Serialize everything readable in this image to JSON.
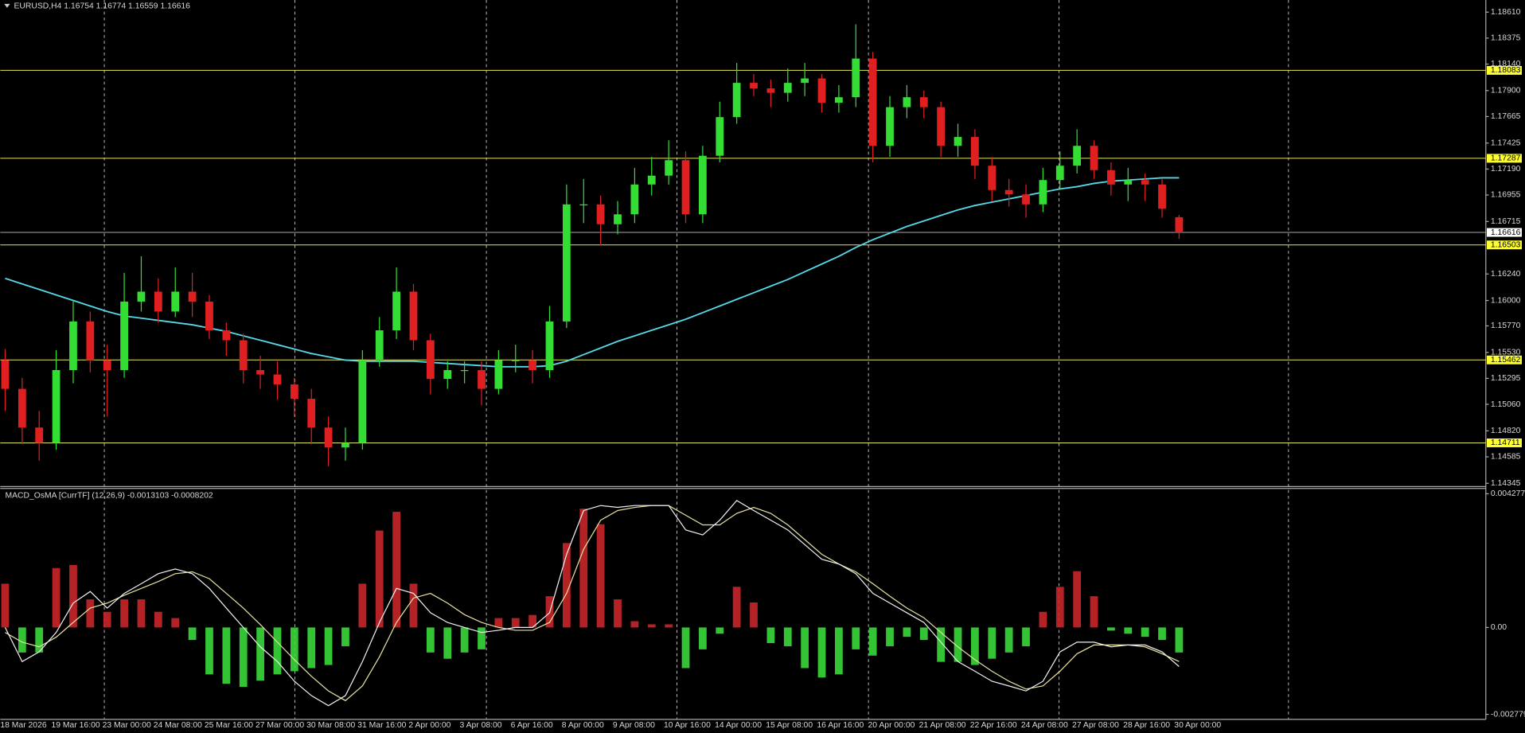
{
  "chart_data": [
    {
      "type": "candlestick",
      "title": "EURUSD,H4  1.16754 1.16774 1.16559 1.16616",
      "up_color": "#33dd33",
      "down_color": "#e02020",
      "open": [
        1.1546,
        1.152,
        1.1485,
        1.1471,
        1.1537,
        1.1581,
        1.1546,
        1.1537,
        1.1599,
        1.1608,
        1.159,
        1.1608,
        1.1599,
        1.1573,
        1.1564,
        1.1537,
        1.1533,
        1.1524,
        1.1511,
        1.1485,
        1.1467,
        1.1471,
        1.1546,
        1.1573,
        1.1608,
        1.1564,
        1.1529,
        1.1537,
        1.1537,
        1.152,
        1.1546,
        1.1546,
        1.1537,
        1.1581,
        1.1687,
        1.1687,
        1.1669,
        1.1678,
        1.1705,
        1.1713,
        1.1727,
        1.1678,
        1.1731,
        1.1766,
        1.1797,
        1.1792,
        1.1788,
        1.1797,
        1.1801,
        1.1779,
        1.1784,
        1.1819,
        1.174,
        1.1775,
        1.1784,
        1.1775,
        1.174,
        1.1748,
        1.1722,
        1.17,
        1.1696,
        1.1687,
        1.1709,
        1.1722,
        1.174,
        1.1718,
        1.1705,
        1.1709,
        1.1705,
        1.16754
      ],
      "high": [
        1.1556,
        1.153,
        1.15,
        1.1555,
        1.16,
        1.159,
        1.156,
        1.1625,
        1.164,
        1.162,
        1.163,
        1.1625,
        1.1605,
        1.158,
        1.157,
        1.155,
        1.1545,
        1.153,
        1.152,
        1.1495,
        1.1485,
        1.1555,
        1.1585,
        1.163,
        1.1615,
        1.157,
        1.1545,
        1.1545,
        1.1545,
        1.1555,
        1.156,
        1.1555,
        1.1595,
        1.1705,
        1.171,
        1.1695,
        1.169,
        1.172,
        1.173,
        1.1745,
        1.1735,
        1.174,
        1.178,
        1.1815,
        1.1805,
        1.18,
        1.181,
        1.1815,
        1.1805,
        1.1795,
        1.185,
        1.1825,
        1.1785,
        1.1795,
        1.179,
        1.178,
        1.176,
        1.1755,
        1.173,
        1.171,
        1.1705,
        1.172,
        1.1735,
        1.1755,
        1.1745,
        1.1725,
        1.172,
        1.1715,
        1.171,
        1.16774
      ],
      "low": [
        1.15,
        1.147,
        1.1455,
        1.1465,
        1.1525,
        1.1535,
        1.1495,
        1.153,
        1.159,
        1.158,
        1.1585,
        1.1585,
        1.1565,
        1.155,
        1.1525,
        1.152,
        1.151,
        1.1495,
        1.147,
        1.145,
        1.1455,
        1.1465,
        1.154,
        1.1565,
        1.1555,
        1.1515,
        1.152,
        1.1525,
        1.1505,
        1.1515,
        1.1535,
        1.1525,
        1.153,
        1.1575,
        1.167,
        1.165,
        1.166,
        1.167,
        1.1695,
        1.1705,
        1.167,
        1.167,
        1.1725,
        1.176,
        1.1785,
        1.1775,
        1.178,
        1.1785,
        1.177,
        1.177,
        1.1775,
        1.1725,
        1.173,
        1.1765,
        1.1765,
        1.173,
        1.173,
        1.171,
        1.169,
        1.1685,
        1.1675,
        1.168,
        1.17,
        1.1715,
        1.171,
        1.1695,
        1.169,
        1.169,
        1.1675,
        1.16559
      ],
      "close": [
        1.152,
        1.1485,
        1.1471,
        1.1537,
        1.1581,
        1.1546,
        1.1537,
        1.1599,
        1.1608,
        1.159,
        1.1608,
        1.1599,
        1.1573,
        1.1564,
        1.1537,
        1.1533,
        1.1524,
        1.1511,
        1.1485,
        1.1467,
        1.1471,
        1.1546,
        1.1573,
        1.1608,
        1.1564,
        1.1529,
        1.1537,
        1.1537,
        1.152,
        1.1546,
        1.1546,
        1.1537,
        1.1581,
        1.1687,
        1.1687,
        1.1669,
        1.1678,
        1.1705,
        1.1713,
        1.1727,
        1.1678,
        1.1731,
        1.1766,
        1.1797,
        1.1792,
        1.1788,
        1.1797,
        1.1801,
        1.1779,
        1.1784,
        1.1819,
        1.174,
        1.1775,
        1.1784,
        1.1775,
        1.174,
        1.1748,
        1.1722,
        1.17,
        1.1696,
        1.1687,
        1.1709,
        1.1722,
        1.174,
        1.1718,
        1.1705,
        1.1709,
        1.1705,
        1.1683,
        1.16616
      ],
      "ma": {
        "color": "#55d8e8",
        "values": [
          1.162,
          1.1615,
          1.161,
          1.1605,
          1.16,
          1.1595,
          1.159,
          1.1586,
          1.1584,
          1.1582,
          1.158,
          1.1578,
          1.1575,
          1.1572,
          1.1568,
          1.1564,
          1.156,
          1.1556,
          1.1552,
          1.1549,
          1.1546,
          1.1545,
          1.1545,
          1.1545,
          1.1545,
          1.1544,
          1.1543,
          1.1542,
          1.1541,
          1.154,
          1.154,
          1.154,
          1.1541,
          1.1545,
          1.1551,
          1.1557,
          1.1563,
          1.1568,
          1.1573,
          1.1578,
          1.1583,
          1.1589,
          1.1595,
          1.1601,
          1.1607,
          1.1613,
          1.1619,
          1.1626,
          1.1633,
          1.164,
          1.1648,
          1.1655,
          1.1661,
          1.1667,
          1.1672,
          1.1677,
          1.1682,
          1.1686,
          1.1689,
          1.1692,
          1.1695,
          1.1698,
          1.1701,
          1.1703,
          1.1706,
          1.1708,
          1.1709,
          1.171,
          1.1711,
          1.1711
        ]
      },
      "levels": [
        1.18083,
        1.17287,
        1.16503,
        1.15462,
        1.14711
      ],
      "level_color": "#e6e65a",
      "price": 1.16616,
      "ylim": [
        1.1432,
        1.1872
      ],
      "yticks": [
        {
          "value": 1.1861,
          "label": "1.18610"
        },
        1.18375,
        {
          "value": 1.1814,
          "label": "1.18140"
        },
        {
          "value": 1.179,
          "label": "1.17900"
        },
        1.17665,
        1.17425,
        {
          "value": 1.1719,
          "label": "1.17190"
        },
        1.16955,
        1.16715,
        {
          "value": 1.1624,
          "label": "1.16240"
        },
        {
          "value": 1.16,
          "label": "1.16000"
        },
        {
          "value": 1.1577,
          "label": "1.15770"
        },
        {
          "value": 1.1553,
          "label": "1.15530"
        },
        1.15295,
        {
          "value": 1.1506,
          "label": "1.15060"
        },
        {
          "value": 1.1482,
          "label": "1.14820"
        },
        1.14585,
        1.14345
      ]
    },
    {
      "type": "bar",
      "title": "MACD_OsMA [CurrTF] (12,26,9) -0.0013103 -0.0008202",
      "categories": [
        "18 Mar 2026",
        null,
        null,
        "19 Mar 16:00",
        null,
        null,
        "23 Mar 00:00",
        null,
        null,
        "24 Mar 08:00",
        null,
        null,
        "25 Mar 16:00",
        null,
        null,
        "27 Mar 00:00",
        null,
        null,
        "30 Mar 08:00",
        null,
        null,
        "31 Mar 16:00",
        null,
        null,
        "2 Apr 00:00",
        null,
        null,
        "3 Apr 08:00",
        null,
        null,
        "6 Apr 16:00",
        null,
        null,
        "8 Apr 00:00",
        null,
        null,
        "9 Apr 08:00",
        null,
        null,
        "10 Apr 16:00",
        null,
        null,
        "14 Apr 00:00",
        null,
        null,
        "15 Apr 08:00",
        null,
        null,
        "16 Apr 16:00",
        null,
        null,
        "20 Apr 00:00",
        null,
        null,
        "21 Apr 08:00",
        null,
        null,
        "22 Apr 16:00",
        null,
        null,
        "24 Apr 08:00",
        null,
        null,
        "27 Apr 08:00",
        null,
        null,
        "28 Apr 16:00",
        null,
        null,
        "30 Apr 00:00"
      ],
      "values": [
        0.0014,
        -0.0008,
        -0.0008,
        0.0019,
        0.002,
        0.0009,
        0.0005,
        0.0009,
        0.0009,
        0.0005,
        0.0003,
        -0.0004,
        -0.0015,
        -0.0018,
        -0.0019,
        -0.0017,
        -0.0015,
        -0.0014,
        -0.0013,
        -0.0012,
        -0.0006,
        0.0014,
        0.0031,
        0.0037,
        0.0014,
        -0.0008,
        -0.001,
        -0.0008,
        -0.0007,
        0.0003,
        0.0003,
        0.0004,
        0.001,
        0.0027,
        0.0038,
        0.0033,
        0.0009,
        0.0002,
        0.0001,
        0.0001,
        -0.0013,
        -0.0007,
        -0.0002,
        0.0013,
        0.0008,
        -0.0005,
        -0.0006,
        -0.0013,
        -0.0016,
        -0.0015,
        -0.0007,
        -0.0009,
        -0.0006,
        -0.0003,
        -0.0004,
        -0.0011,
        -0.0011,
        -0.0012,
        -0.001,
        -0.0008,
        -0.0006,
        0.0005,
        0.0013,
        0.0018,
        0.001,
        -0.0001,
        -0.0002,
        -0.0003,
        -0.0004,
        -0.0008
      ],
      "up_color": "#c8262a",
      "down_color": "#3ad83a",
      "macd": {
        "color": "#f0f0f0",
        "values": [
          0,
          -0.00109,
          -0.00078,
          -0.00016,
          0.00078,
          0.00115,
          0.00062,
          0.00109,
          0.0014,
          0.00172,
          0.00187,
          0.00172,
          0.00125,
          0.00062,
          0,
          -0.00062,
          -0.00109,
          -0.00172,
          -0.00218,
          -0.0025,
          -0.00218,
          -0.00109,
          0.00016,
          0.00125,
          0.00109,
          0.00047,
          0.00016,
          0,
          -0.00016,
          -9e-05,
          0,
          0,
          0.00047,
          0.00234,
          0.00374,
          0.0039,
          0.00384,
          0.0039,
          0.0039,
          0.0039,
          0.00312,
          0.00296,
          0.00343,
          0.00406,
          0.00374,
          0.00343,
          0.00312,
          0.00265,
          0.00218,
          0.00203,
          0.00172,
          0.00109,
          0.00078,
          0.00047,
          0.00016,
          -0.00047,
          -0.00109,
          -0.0014,
          -0.00172,
          -0.00187,
          -0.00203,
          -0.00172,
          -0.00078,
          -0.00047,
          -0.00047,
          -0.00062,
          -0.00056,
          -0.00056,
          -0.00078,
          -0.00125
        ]
      },
      "signal": {
        "color": "#e8e0a0",
        "values": [
          -0.00016,
          -0.00047,
          -0.00062,
          -0.00031,
          0.00016,
          0.00062,
          0.00078,
          0.00103,
          0.00125,
          0.00147,
          0.00172,
          0.00178,
          0.00156,
          0.00109,
          0.00062,
          9e-05,
          -0.00047,
          -0.00103,
          -0.00156,
          -0.00203,
          -0.00234,
          -0.00187,
          -0.00094,
          0.00016,
          0.00094,
          0.00109,
          0.00078,
          0.00041,
          0.00016,
          0,
          -9e-05,
          -9e-05,
          0.00016,
          0.00109,
          0.0025,
          0.00343,
          0.00374,
          0.00384,
          0.0039,
          0.0039,
          0.00359,
          0.00328,
          0.00328,
          0.00365,
          0.00384,
          0.00365,
          0.00328,
          0.00281,
          0.00234,
          0.00203,
          0.00178,
          0.0014,
          0.001,
          0.00062,
          0.00031,
          -0.00016,
          -0.00062,
          -0.00103,
          -0.0014,
          -0.00172,
          -0.00197,
          -0.00187,
          -0.0014,
          -0.00084,
          -0.00056,
          -0.00056,
          -0.00056,
          -0.00062,
          -0.00084,
          -0.00109
        ]
      },
      "ylim": [
        -0.00294,
        0.00446
      ],
      "yticks": [
        0.0042772,
        {
          "value": 0,
          "label": "0.00"
        },
        -0.002779
      ]
    }
  ]
}
